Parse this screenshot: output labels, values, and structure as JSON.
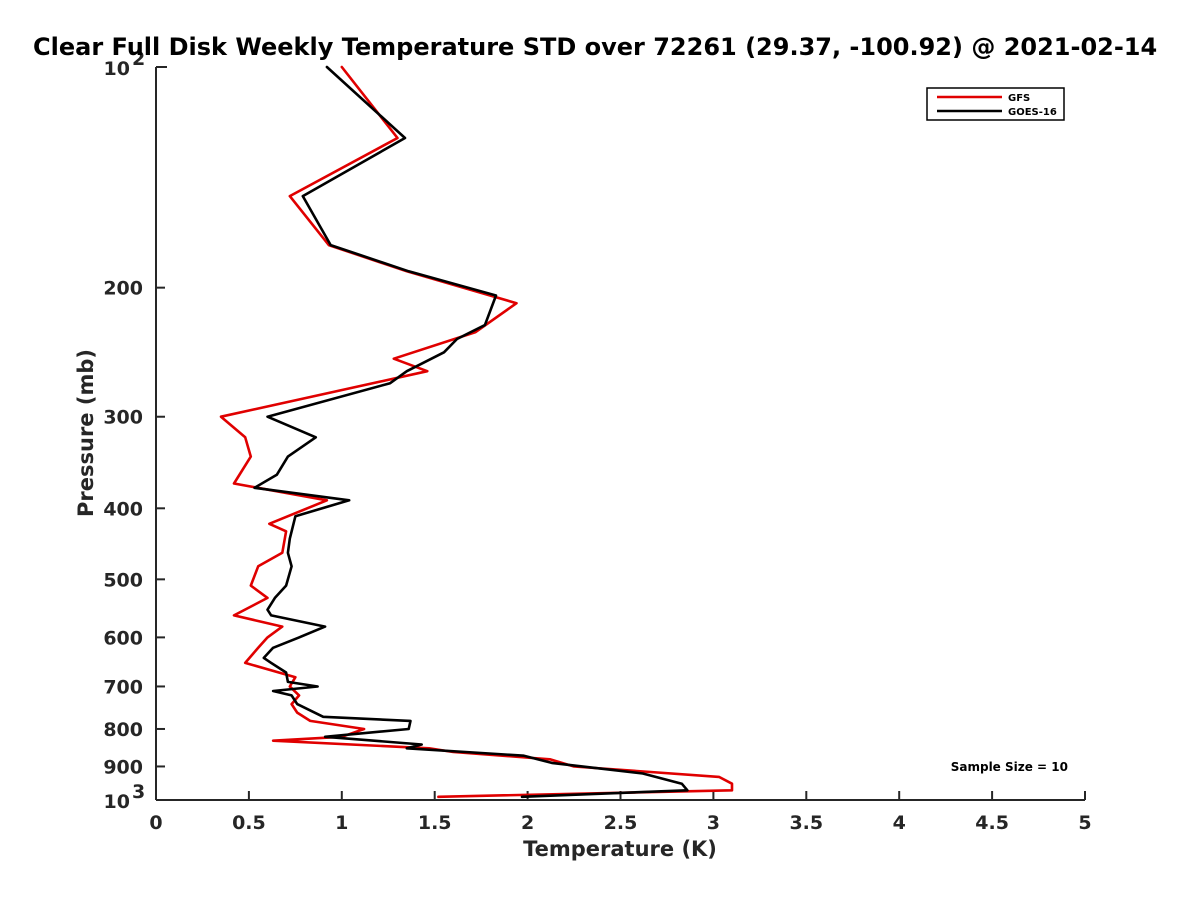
{
  "chart_data": {
    "type": "line",
    "title": "Clear Full Disk Weekly Temperature STD over 72261 (29.37, -100.92) @ 2021-02-14",
    "xlabel": "Temperature (K)",
    "ylabel": "Pressure (mb)",
    "xlim": [
      0,
      5
    ],
    "ylim": [
      100,
      1000
    ],
    "y_scale": "log",
    "y_reversed": true,
    "grid": false,
    "legend_position": "top-right",
    "x_ticks": [
      "0",
      "0.5",
      "1",
      "1.5",
      "2",
      "2.5",
      "3",
      "3.5",
      "4",
      "4.5",
      "5"
    ],
    "y_ticks": [
      {
        "value": 200,
        "label": "200"
      },
      {
        "value": 300,
        "label": "300"
      },
      {
        "value": 400,
        "label": "400"
      },
      {
        "value": 500,
        "label": "500"
      },
      {
        "value": 600,
        "label": "600"
      },
      {
        "value": 700,
        "label": "700"
      },
      {
        "value": 800,
        "label": "800"
      },
      {
        "value": 900,
        "label": "900"
      }
    ],
    "y_decade_ticks": [
      {
        "value": 100,
        "base": "10",
        "exp": "2"
      },
      {
        "value": 1000,
        "base": "10",
        "exp": "3"
      }
    ],
    "annotation": "Sample Size = 10",
    "series": [
      {
        "name": "GFS",
        "color": "#e00000",
        "points": [
          [
            1.0,
            100
          ],
          [
            1.3,
            125
          ],
          [
            0.72,
            150
          ],
          [
            0.93,
            175
          ],
          [
            1.35,
            190
          ],
          [
            1.94,
            210
          ],
          [
            1.72,
            230
          ],
          [
            1.28,
            250
          ],
          [
            1.46,
            260
          ],
          [
            0.35,
            300
          ],
          [
            0.48,
            320
          ],
          [
            0.51,
            340
          ],
          [
            0.42,
            370
          ],
          [
            0.92,
            390
          ],
          [
            0.61,
            420
          ],
          [
            0.7,
            430
          ],
          [
            0.68,
            460
          ],
          [
            0.55,
            480
          ],
          [
            0.51,
            510
          ],
          [
            0.6,
            530
          ],
          [
            0.42,
            560
          ],
          [
            0.68,
            580
          ],
          [
            0.6,
            600
          ],
          [
            0.55,
            620
          ],
          [
            0.48,
            650
          ],
          [
            0.75,
            680
          ],
          [
            0.72,
            700
          ],
          [
            0.77,
            720
          ],
          [
            0.73,
            740
          ],
          [
            0.76,
            760
          ],
          [
            0.83,
            780
          ],
          [
            1.12,
            800
          ],
          [
            1.0,
            820
          ],
          [
            0.63,
            830
          ],
          [
            1.47,
            850
          ],
          [
            1.6,
            860
          ],
          [
            2.12,
            880
          ],
          [
            2.25,
            900
          ],
          [
            3.03,
            930
          ],
          [
            3.1,
            950
          ],
          [
            3.1,
            970
          ],
          [
            1.52,
            990
          ]
        ]
      },
      {
        "name": "GOES-16",
        "color": "#000000",
        "points": [
          [
            0.92,
            100
          ],
          [
            1.34,
            125
          ],
          [
            0.79,
            150
          ],
          [
            0.94,
            175
          ],
          [
            1.36,
            190
          ],
          [
            1.83,
            205
          ],
          [
            1.77,
            225
          ],
          [
            1.62,
            235
          ],
          [
            1.55,
            245
          ],
          [
            1.35,
            260
          ],
          [
            1.26,
            270
          ],
          [
            0.6,
            300
          ],
          [
            0.86,
            320
          ],
          [
            0.71,
            340
          ],
          [
            0.65,
            360
          ],
          [
            0.53,
            375
          ],
          [
            1.04,
            390
          ],
          [
            0.75,
            410
          ],
          [
            0.72,
            440
          ],
          [
            0.71,
            460
          ],
          [
            0.73,
            480
          ],
          [
            0.7,
            510
          ],
          [
            0.64,
            530
          ],
          [
            0.6,
            550
          ],
          [
            0.62,
            560
          ],
          [
            0.91,
            580
          ],
          [
            0.77,
            600
          ],
          [
            0.63,
            620
          ],
          [
            0.58,
            640
          ],
          [
            0.62,
            650
          ],
          [
            0.7,
            670
          ],
          [
            0.71,
            690
          ],
          [
            0.87,
            700
          ],
          [
            0.63,
            710
          ],
          [
            0.73,
            720
          ],
          [
            0.76,
            740
          ],
          [
            0.9,
            770
          ],
          [
            1.37,
            780
          ],
          [
            1.36,
            800
          ],
          [
            0.91,
            820
          ],
          [
            1.43,
            840
          ],
          [
            1.35,
            850
          ],
          [
            1.98,
            870
          ],
          [
            2.13,
            890
          ],
          [
            2.62,
            920
          ],
          [
            2.83,
            950
          ],
          [
            2.86,
            970
          ],
          [
            1.97,
            990
          ]
        ]
      }
    ]
  }
}
